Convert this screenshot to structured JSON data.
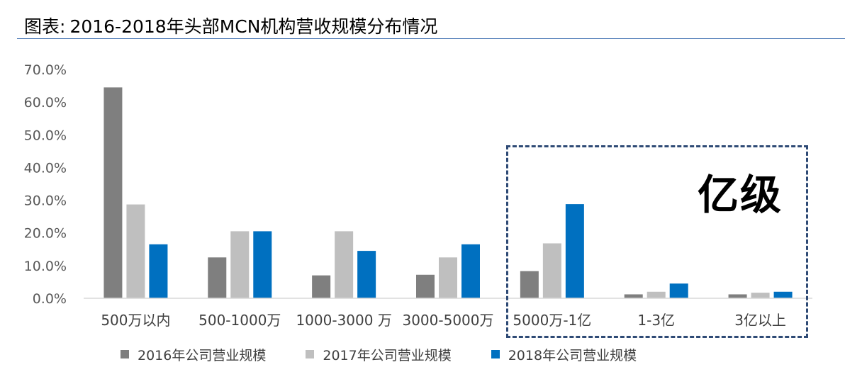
{
  "header": {
    "prefix": "图表:",
    "title": "2016-2018年头部MCN机构营收规模分布情况"
  },
  "callout": {
    "label": "亿级"
  },
  "colors": {
    "s2016": "#7f7f7f",
    "s2017": "#bfbfbf",
    "s2018": "#0070c0",
    "axis": "#d9d9d9",
    "tick_text": "#595959"
  },
  "chart_data": {
    "type": "bar",
    "title": "2016-2018年头部MCN机构营收规模分布情况",
    "xlabel": "",
    "ylabel": "",
    "ylim": [
      0,
      70
    ],
    "ytick_values": [
      0,
      10,
      20,
      30,
      40,
      50,
      60,
      70
    ],
    "ytick_labels": [
      "0.0%",
      "10.0%",
      "20.0%",
      "30.0%",
      "40.0%",
      "50.0%",
      "60.0%",
      "70.0%"
    ],
    "grid": false,
    "legend_position": "bottom",
    "categories": [
      "500万以内",
      "500-1000万",
      "1000-3000 万",
      "3000-5000万",
      "5000万-1亿",
      "1-3亿",
      "3亿以上"
    ],
    "series": [
      {
        "name": "2016年公司营业规模",
        "color_key": "s2016",
        "values": [
          64.5,
          12.5,
          7.0,
          7.2,
          8.3,
          1.2,
          1.2
        ]
      },
      {
        "name": "2017年公司营业规模",
        "color_key": "s2017",
        "values": [
          28.7,
          20.5,
          20.5,
          12.5,
          16.8,
          2.0,
          1.7
        ]
      },
      {
        "name": "2018年公司营业规模",
        "color_key": "s2018",
        "values": [
          16.5,
          20.5,
          14.5,
          16.5,
          28.8,
          4.5,
          2.0
        ]
      }
    ]
  }
}
